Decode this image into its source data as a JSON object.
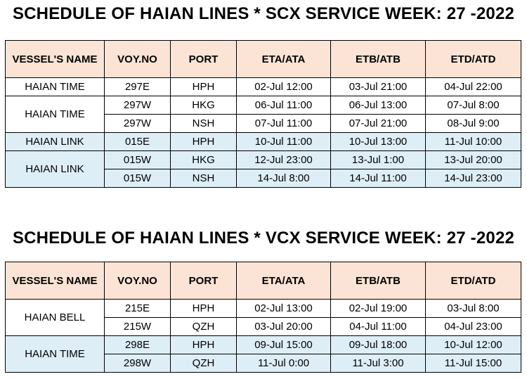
{
  "headers": [
    "VESSEL'S NAME",
    "VOY.NO",
    "PORT",
    "ETA/ATA",
    "ETB/ATB",
    "ETD/ATD"
  ],
  "scx": {
    "title": "SCHEDULE OF HAIAN LINES * SCX SERVICE WEEK: 27 -2022",
    "vessels": [
      {
        "name": "HAIAN TIME",
        "shade": "white",
        "rows": [
          {
            "voy": "297E",
            "port": "HPH",
            "eta": "02-Jul 12:00",
            "etb": "03-Jul 21:00",
            "etd": "04-Jul 22:00"
          }
        ]
      },
      {
        "name": "HAIAN TIME",
        "shade": "white",
        "rows": [
          {
            "voy": "297W",
            "port": "HKG",
            "eta": "06-Jul 11:00",
            "etb": "06-Jul 13:00",
            "etd": "07-Jul 8:00"
          },
          {
            "voy": "297W",
            "port": "NSH",
            "eta": "07-Jul 11:00",
            "etb": "07-Jul 21:00",
            "etd": "08-Jul 9:00"
          }
        ]
      },
      {
        "name": "HAIAN LINK",
        "shade": "blue",
        "rows": [
          {
            "voy": "015E",
            "port": "HPH",
            "eta": "10-Jul 11:00",
            "etb": "10-Jul 13:00",
            "etd": "11-Jul 10:00"
          }
        ]
      },
      {
        "name": "HAIAN LINK",
        "shade": "blue",
        "rows": [
          {
            "voy": "015W",
            "port": "HKG",
            "eta": "12-Jul 23:00",
            "etb": "13-Jul 1:00",
            "etd": "13-Jul 20:00"
          },
          {
            "voy": "015W",
            "port": "NSH",
            "eta": "14-Jul 8:00",
            "etb": "14-Jul 11:00",
            "etd": "14-Jul 23:00"
          }
        ]
      }
    ]
  },
  "vcx": {
    "title": "SCHEDULE OF HAIAN LINES * VCX SERVICE WEEK: 27 -2022",
    "vessels": [
      {
        "name": "HAIAN BELL",
        "shade": "white",
        "rows": [
          {
            "voy": "215E",
            "port": "HPH",
            "eta": "02-Jul 13:00",
            "etb": "02-Jul 19:00",
            "etd": "03-Jul 8:00"
          },
          {
            "voy": "215W",
            "port": "QZH",
            "eta": "03-Jul 20:00",
            "etb": "04-Jul 11:00",
            "etd": "04-Jul 23:00"
          }
        ]
      },
      {
        "name": "HAIAN TIME",
        "shade": "blue",
        "rows": [
          {
            "voy": "298E",
            "port": "HPH",
            "eta": "09-Jul 15:00",
            "etb": "09-Jul 18:00",
            "etd": "10-Jul 12:00"
          },
          {
            "voy": "298W",
            "port": "QZH",
            "eta": "11-Jul 0:00",
            "etb": "11-Jul 3:00",
            "etd": "11-Jul 15:00"
          }
        ]
      }
    ]
  }
}
